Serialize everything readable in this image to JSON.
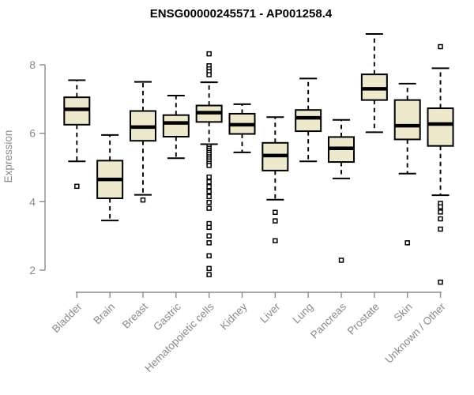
{
  "chart_data": {
    "type": "boxplot",
    "title": "ENSG00000245571 - AP001258.4",
    "xlabel": "",
    "ylabel": "Expression",
    "yticks": [
      2,
      4,
      6,
      8
    ],
    "ylim": [
      1.3,
      9.2
    ],
    "grid": false,
    "legend": null,
    "marker": "open-square",
    "categories": [
      "Bladder",
      "Brain",
      "Breast",
      "Gastric",
      "Hematopoietic cells",
      "Kidney",
      "Liver",
      "Lung",
      "Pancreas",
      "Prostate",
      "Skin",
      "Unknown / Other"
    ],
    "series": [
      {
        "name": "Bladder",
        "low": 5.18,
        "q1": 6.25,
        "median": 6.7,
        "q3": 7.05,
        "high": 7.55,
        "outliers": [
          4.45
        ]
      },
      {
        "name": "Brain",
        "low": 3.45,
        "q1": 4.1,
        "median": 4.65,
        "q3": 5.2,
        "high": 5.95,
        "outliers": []
      },
      {
        "name": "Breast",
        "low": 4.2,
        "q1": 5.78,
        "median": 6.18,
        "q3": 6.65,
        "high": 7.5,
        "outliers": [
          4.05
        ]
      },
      {
        "name": "Gastric",
        "low": 5.27,
        "q1": 5.9,
        "median": 6.3,
        "q3": 6.53,
        "high": 7.1,
        "outliers": []
      },
      {
        "name": "Hematopoietic cells",
        "low": 5.68,
        "q1": 6.33,
        "median": 6.6,
        "q3": 6.81,
        "high": 7.49,
        "outliers": [
          8.32,
          7.97,
          7.88,
          7.8,
          7.71,
          5.62,
          5.56,
          5.5,
          5.44,
          5.38,
          5.31,
          5.25,
          5.19,
          5.12,
          5.06,
          4.72,
          4.58,
          4.44,
          4.3,
          4.15,
          3.98,
          3.81,
          3.36,
          3.25,
          3.0,
          2.8,
          2.42,
          2.05,
          1.87
        ]
      },
      {
        "name": "Kidney",
        "low": 5.44,
        "q1": 5.98,
        "median": 6.25,
        "q3": 6.57,
        "high": 6.85,
        "outliers": []
      },
      {
        "name": "Liver",
        "low": 4.06,
        "q1": 4.91,
        "median": 5.35,
        "q3": 5.72,
        "high": 6.47,
        "outliers": [
          3.69,
          3.44,
          2.86
        ]
      },
      {
        "name": "Lung",
        "low": 5.18,
        "q1": 6.06,
        "median": 6.45,
        "q3": 6.68,
        "high": 7.6,
        "outliers": []
      },
      {
        "name": "Pancreas",
        "low": 4.68,
        "q1": 5.16,
        "median": 5.56,
        "q3": 5.89,
        "high": 6.39,
        "outliers": [
          2.29
        ]
      },
      {
        "name": "Prostate",
        "low": 6.03,
        "q1": 6.97,
        "median": 7.3,
        "q3": 7.72,
        "high": 8.9,
        "outliers": []
      },
      {
        "name": "Skin",
        "low": 4.82,
        "q1": 5.82,
        "median": 6.22,
        "q3": 6.97,
        "high": 7.45,
        "outliers": [
          2.8
        ]
      },
      {
        "name": "Unknown / Other",
        "low": 4.19,
        "q1": 5.63,
        "median": 6.27,
        "q3": 6.73,
        "high": 7.9,
        "outliers": [
          8.53,
          3.95,
          3.85,
          3.7,
          3.5,
          3.2,
          1.65
        ]
      }
    ],
    "colors": {
      "background": "#FFFFFF",
      "box_fill": "#EEE8CD",
      "box_border": "#000000",
      "median": "#000000",
      "whisker": "#000000",
      "outlier": "#000000",
      "axis": "#8a8a8a",
      "tick_label": "#8a8a8a",
      "title": "#000000"
    }
  }
}
